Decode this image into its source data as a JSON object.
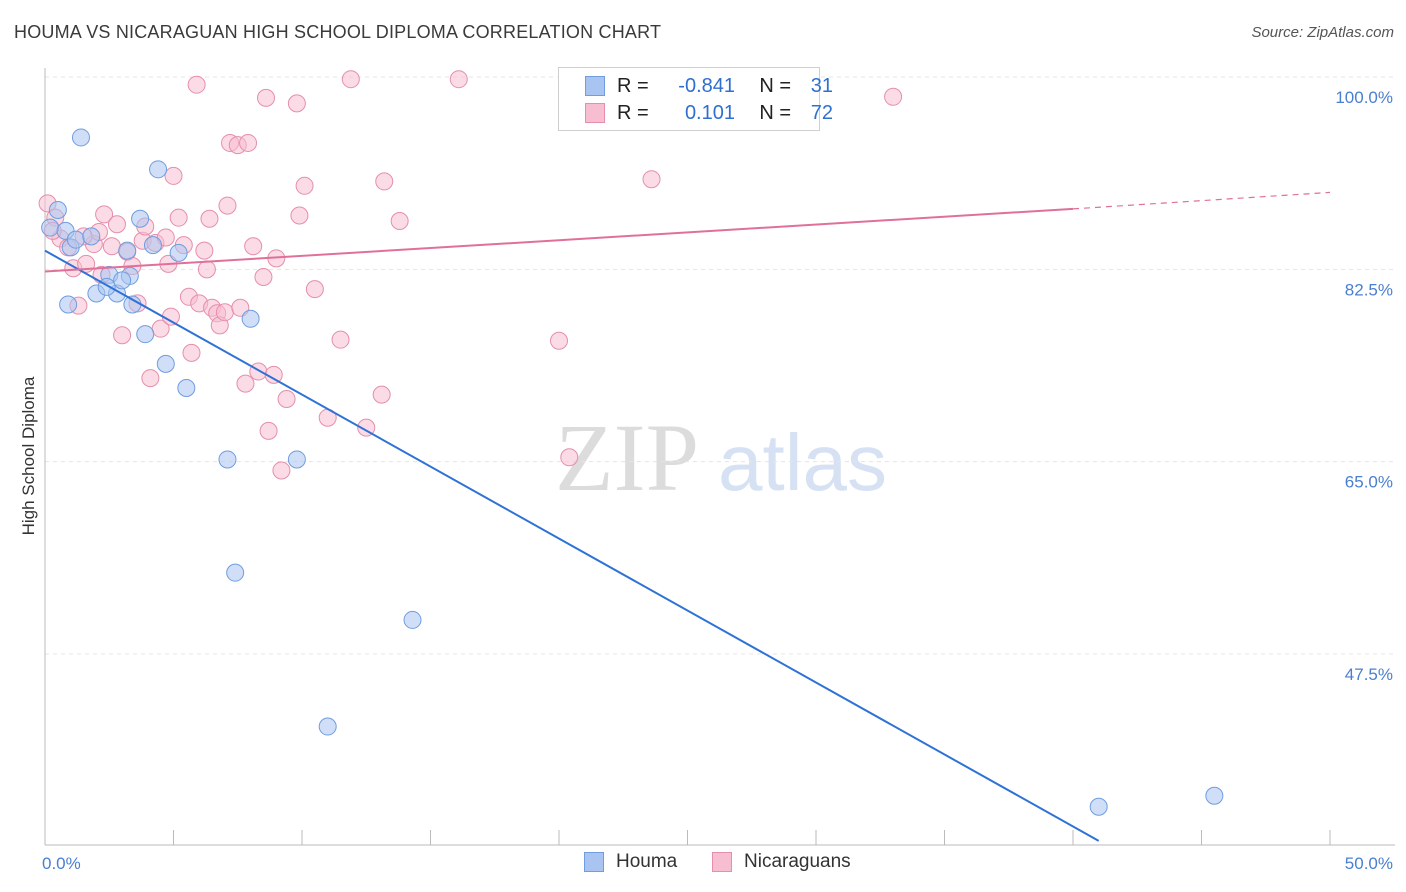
{
  "title": "HOUMA VS NICARAGUAN HIGH SCHOOL DIPLOMA CORRELATION CHART",
  "source": "Source: ZipAtlas.com",
  "watermark": {
    "zip": "ZIP",
    "atlas": "atlas"
  },
  "legend": {
    "rows": [
      {
        "r_label": "R =",
        "r_value": "-0.841",
        "n_label": "N =",
        "n_value": "31",
        "color": "#a9c4f0",
        "stroke": "#6f9de0"
      },
      {
        "r_label": "R =",
        "r_value": "0.101",
        "n_label": "N =",
        "n_value": "72",
        "color": "#f7bdd0",
        "stroke": "#e58fac"
      }
    ]
  },
  "bottom_legend": [
    {
      "label": "Houma",
      "color": "#a9c4f0",
      "stroke": "#6f9de0"
    },
    {
      "label": "Nicaraguans",
      "color": "#f7bdd0",
      "stroke": "#e58fac"
    }
  ],
  "chart_data": {
    "type": "scatter",
    "title": "HOUMA VS NICARAGUAN HIGH SCHOOL DIPLOMA CORRELATION CHART",
    "xlabel": "",
    "ylabel": "High School Diploma",
    "xlim": [
      0,
      50
    ],
    "ylim": [
      31,
      102
    ],
    "x_tick_labels": [
      "0.0%",
      "50.0%"
    ],
    "y_ticks": [
      100,
      82.5,
      65,
      47.5
    ],
    "y_tick_labels": [
      "100.0%",
      "82.5%",
      "65.0%",
      "47.5%"
    ],
    "grid": true,
    "legend_position": "top-center",
    "series": [
      {
        "name": "Houma",
        "color": "#6f9de0",
        "fill": "#a9c4f0",
        "trend": {
          "x": [
            0,
            41
          ],
          "y": [
            84.2,
            30.5
          ],
          "dashed_to": null
        },
        "points": [
          [
            0.2,
            86.3
          ],
          [
            0.5,
            87.9
          ],
          [
            0.8,
            86.0
          ],
          [
            1.0,
            84.5
          ],
          [
            1.2,
            85.2
          ],
          [
            1.4,
            94.5
          ],
          [
            1.8,
            85.5
          ],
          [
            2.0,
            80.3
          ],
          [
            2.5,
            82.0
          ],
          [
            2.8,
            80.3
          ],
          [
            3.2,
            84.2
          ],
          [
            3.3,
            81.9
          ],
          [
            3.4,
            79.3
          ],
          [
            3.7,
            87.1
          ],
          [
            3.9,
            76.6
          ],
          [
            4.2,
            84.7
          ],
          [
            4.4,
            91.6
          ],
          [
            4.7,
            73.9
          ],
          [
            5.2,
            84.0
          ],
          [
            5.5,
            71.7
          ],
          [
            7.1,
            65.2
          ],
          [
            7.4,
            54.9
          ],
          [
            8.0,
            78.0
          ],
          [
            9.8,
            65.2
          ],
          [
            11.0,
            40.9
          ],
          [
            14.3,
            50.6
          ],
          [
            41.0,
            33.6
          ],
          [
            45.5,
            34.6
          ],
          [
            0.9,
            79.3
          ],
          [
            2.4,
            80.9
          ],
          [
            3.0,
            81.5
          ]
        ]
      },
      {
        "name": "Nicaraguans",
        "color": "#e58fac",
        "fill": "#f7bdd0",
        "trend": {
          "x": [
            0,
            40
          ],
          "y": [
            82.3,
            88.0
          ],
          "dashed_to": [
            50,
            89.5
          ]
        },
        "points": [
          [
            0.1,
            88.5
          ],
          [
            0.4,
            87.2
          ],
          [
            0.6,
            85.3
          ],
          [
            0.9,
            84.5
          ],
          [
            1.1,
            82.6
          ],
          [
            1.3,
            79.2
          ],
          [
            1.6,
            83.0
          ],
          [
            1.9,
            84.8
          ],
          [
            2.1,
            85.9
          ],
          [
            2.3,
            87.5
          ],
          [
            2.6,
            84.6
          ],
          [
            2.8,
            86.6
          ],
          [
            3.0,
            76.5
          ],
          [
            3.2,
            84.1
          ],
          [
            3.4,
            82.8
          ],
          [
            3.6,
            79.4
          ],
          [
            3.8,
            85.1
          ],
          [
            3.9,
            86.4
          ],
          [
            4.1,
            72.6
          ],
          [
            4.3,
            84.9
          ],
          [
            4.5,
            77.1
          ],
          [
            4.7,
            85.4
          ],
          [
            4.9,
            78.2
          ],
          [
            5.0,
            91.0
          ],
          [
            5.2,
            87.2
          ],
          [
            5.4,
            84.7
          ],
          [
            5.6,
            80.0
          ],
          [
            5.7,
            74.9
          ],
          [
            5.9,
            99.3
          ],
          [
            6.0,
            79.4
          ],
          [
            6.2,
            84.2
          ],
          [
            6.4,
            87.1
          ],
          [
            6.5,
            79.0
          ],
          [
            6.7,
            78.5
          ],
          [
            6.8,
            77.4
          ],
          [
            7.0,
            78.6
          ],
          [
            7.1,
            88.3
          ],
          [
            7.2,
            94.0
          ],
          [
            7.5,
            93.8
          ],
          [
            7.6,
            79.0
          ],
          [
            7.8,
            72.1
          ],
          [
            7.9,
            94.0
          ],
          [
            8.1,
            84.6
          ],
          [
            8.3,
            73.2
          ],
          [
            8.5,
            81.8
          ],
          [
            8.6,
            98.1
          ],
          [
            8.7,
            67.8
          ],
          [
            8.9,
            72.9
          ],
          [
            9.2,
            64.2
          ],
          [
            9.4,
            70.7
          ],
          [
            9.8,
            97.6
          ],
          [
            9.9,
            87.4
          ],
          [
            10.1,
            90.1
          ],
          [
            10.5,
            80.7
          ],
          [
            11.0,
            69.0
          ],
          [
            11.5,
            76.1
          ],
          [
            11.9,
            99.8
          ],
          [
            12.5,
            68.1
          ],
          [
            13.1,
            71.1
          ],
          [
            13.2,
            90.5
          ],
          [
            13.8,
            86.9
          ],
          [
            16.1,
            99.8
          ],
          [
            20.0,
            76.0
          ],
          [
            20.4,
            65.4
          ],
          [
            23.6,
            90.7
          ],
          [
            33.0,
            98.2
          ],
          [
            0.3,
            86.0
          ],
          [
            1.5,
            85.5
          ],
          [
            2.2,
            82.0
          ],
          [
            4.8,
            83.0
          ],
          [
            6.3,
            82.5
          ],
          [
            9.0,
            83.5
          ]
        ]
      }
    ]
  }
}
